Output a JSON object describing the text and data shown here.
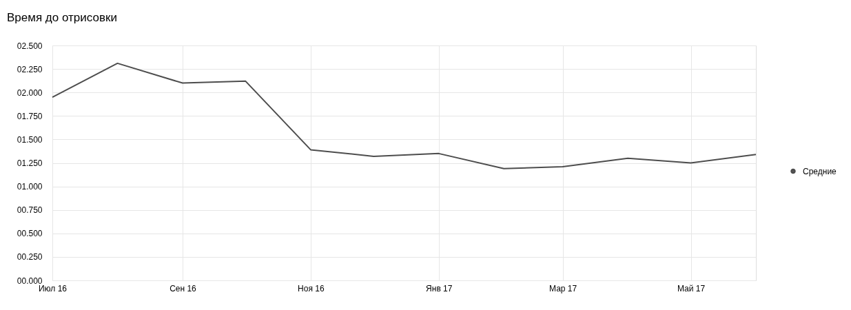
{
  "chart_data": {
    "type": "line",
    "title": "Время до отрисовки",
    "x": [
      "2016-07",
      "2016-08",
      "2016-09",
      "2016-10",
      "2016-11",
      "2016-12",
      "2017-01",
      "2017-02",
      "2017-03",
      "2017-04",
      "2017-05",
      "2017-06"
    ],
    "series": [
      {
        "name": "Средние",
        "color": "#4d4d4d",
        "values": [
          1.95,
          2.31,
          2.1,
          2.12,
          1.39,
          1.32,
          1.35,
          1.19,
          1.21,
          1.3,
          1.25,
          1.34
        ]
      }
    ],
    "xlim": [
      "2016-07",
      "2017-06"
    ],
    "xticks": [
      {
        "value": "2016-07",
        "label": "Июл 16"
      },
      {
        "value": "2016-09",
        "label": "Сен 16"
      },
      {
        "value": "2016-11",
        "label": "Ноя 16"
      },
      {
        "value": "2017-01",
        "label": "Янв 17"
      },
      {
        "value": "2017-03",
        "label": "Мар 17"
      },
      {
        "value": "2017-05",
        "label": "Май 17"
      }
    ],
    "ylim": [
      0,
      2.5
    ],
    "yticks": [
      {
        "value": 0,
        "label": "00.000"
      },
      {
        "value": 0.25,
        "label": "00.250"
      },
      {
        "value": 0.5,
        "label": "00.500"
      },
      {
        "value": 0.75,
        "label": "00.750"
      },
      {
        "value": 1,
        "label": "01.000"
      },
      {
        "value": 1.25,
        "label": "01.250"
      },
      {
        "value": 1.5,
        "label": "01.500"
      },
      {
        "value": 1.75,
        "label": "01.750"
      },
      {
        "value": 2,
        "label": "02.000"
      },
      {
        "value": 2.25,
        "label": "02.250"
      },
      {
        "value": 2.5,
        "label": "02.500"
      }
    ],
    "grid": true,
    "legend": "right"
  }
}
